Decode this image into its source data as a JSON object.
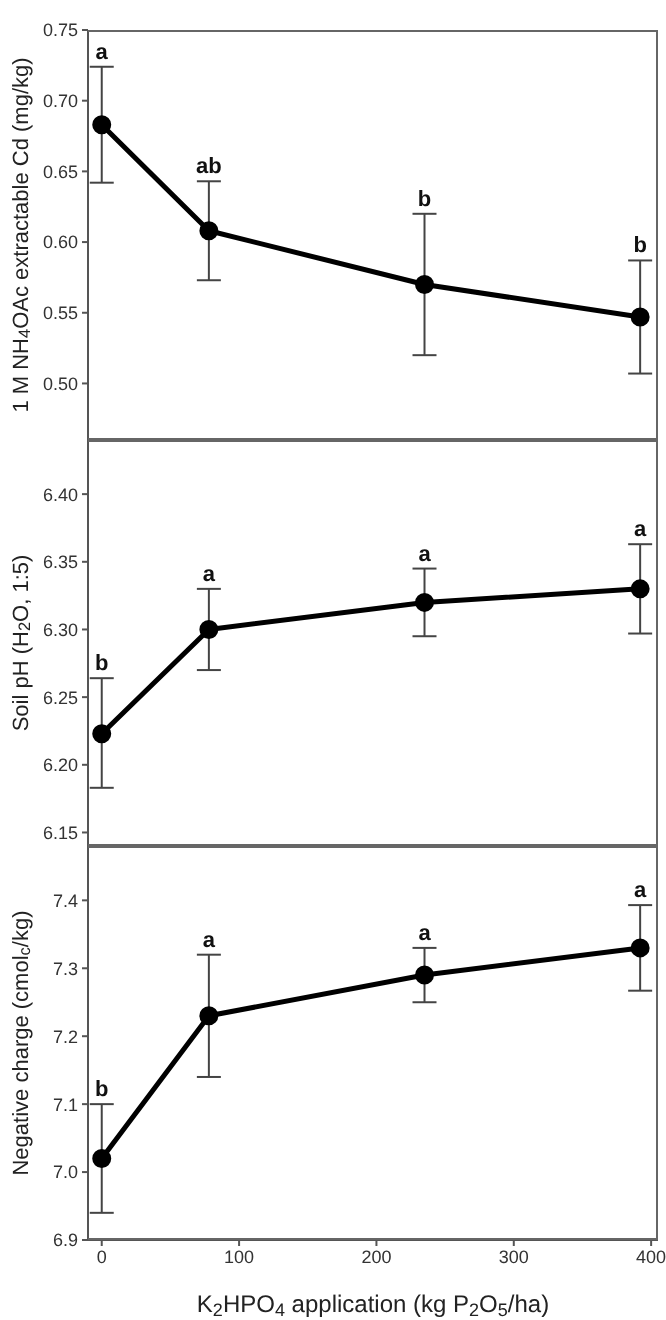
{
  "chart_data": [
    {
      "type": "line",
      "ylabel": "1 M NH$_{4}$OAc extractable Cd (mg/kg)",
      "x": [
        0,
        78,
        235,
        392
      ],
      "values": [
        0.683,
        0.608,
        0.57,
        0.547
      ],
      "errors": [
        [
          0.642,
          0.724
        ],
        [
          0.573,
          0.643
        ],
        [
          0.52,
          0.62
        ],
        [
          0.507,
          0.587
        ]
      ],
      "color": "#000000",
      "marker": "circle",
      "line_style": "solid",
      "tick_labels": "y",
      "xlim": [
        -10,
        405
      ],
      "ylim": [
        0.46,
        0.75
      ],
      "yticks": [
        {
          "value": 0.5,
          "label": "0.50"
        },
        {
          "value": 0.55,
          "label": "0.55"
        },
        {
          "value": 0.6,
          "label": "0.60"
        },
        {
          "value": 0.65,
          "label": "0.65"
        },
        {
          "value": 0.7,
          "label": "0.70"
        },
        {
          "value": 0.75,
          "label": "0.75"
        }
      ],
      "annotations": [
        {
          "text": "a",
          "x": 0,
          "y": 0.724
        },
        {
          "text": "ab",
          "x": 78,
          "y": 0.643
        },
        {
          "text": "b",
          "x": 235,
          "y": 0.62
        },
        {
          "text": "b",
          "x": 392,
          "y": 0.587
        }
      ]
    },
    {
      "type": "line",
      "ylabel": "Soil pH (H$_{2}$O, 1:5)",
      "x": [
        0,
        78,
        235,
        392
      ],
      "values": [
        6.223,
        6.3,
        6.32,
        6.33
      ],
      "errors": [
        [
          6.183,
          6.264
        ],
        [
          6.27,
          6.33
        ],
        [
          6.295,
          6.345
        ],
        [
          6.297,
          6.363
        ]
      ],
      "color": "#000000",
      "marker": "circle",
      "line_style": "solid",
      "tick_labels": "y",
      "xlim": [
        -10,
        405
      ],
      "ylim": [
        6.14,
        6.44
      ],
      "yticks": [
        {
          "value": 6.15,
          "label": "6.15"
        },
        {
          "value": 6.2,
          "label": "6.20"
        },
        {
          "value": 6.25,
          "label": "6.25"
        },
        {
          "value": 6.3,
          "label": "6.30"
        },
        {
          "value": 6.35,
          "label": "6.35"
        },
        {
          "value": 6.4,
          "label": "6.40"
        }
      ],
      "annotations": [
        {
          "text": "b",
          "x": 0,
          "y": 6.264
        },
        {
          "text": "a",
          "x": 78,
          "y": 6.33
        },
        {
          "text": "a",
          "x": 235,
          "y": 6.345
        },
        {
          "text": "a",
          "x": 392,
          "y": 6.363
        }
      ]
    },
    {
      "type": "line",
      "ylabel": "Negative charge (cmol$_{c}$/kg)",
      "xlabel": "K$_{2}$HPO$_{4}$ application (kg P$_{2}$O$_{5}$/ha)",
      "x": [
        0,
        78,
        235,
        392
      ],
      "values": [
        7.02,
        7.23,
        7.29,
        7.33
      ],
      "errors": [
        [
          6.94,
          7.1
        ],
        [
          7.14,
          7.32
        ],
        [
          7.25,
          7.33
        ],
        [
          7.267,
          7.393
        ]
      ],
      "color": "#000000",
      "marker": "circle",
      "line_style": "solid",
      "xlim": [
        -10,
        405
      ],
      "ylim": [
        6.9,
        7.48
      ],
      "xticks": [
        0,
        100,
        200,
        300,
        400
      ],
      "yticks": [
        {
          "value": 6.9,
          "label": "6.9"
        },
        {
          "value": 7.0,
          "label": "7.0"
        },
        {
          "value": 7.1,
          "label": "7.1"
        },
        {
          "value": 7.2,
          "label": "7.2"
        },
        {
          "value": 7.3,
          "label": "7.3"
        },
        {
          "value": 7.4,
          "label": "7.4"
        }
      ],
      "annotations": [
        {
          "text": "b",
          "x": 0,
          "y": 7.1
        },
        {
          "text": "a",
          "x": 78,
          "y": 7.32
        },
        {
          "text": "a",
          "x": 235,
          "y": 7.33
        },
        {
          "text": "a",
          "x": 392,
          "y": 7.393
        }
      ]
    }
  ]
}
